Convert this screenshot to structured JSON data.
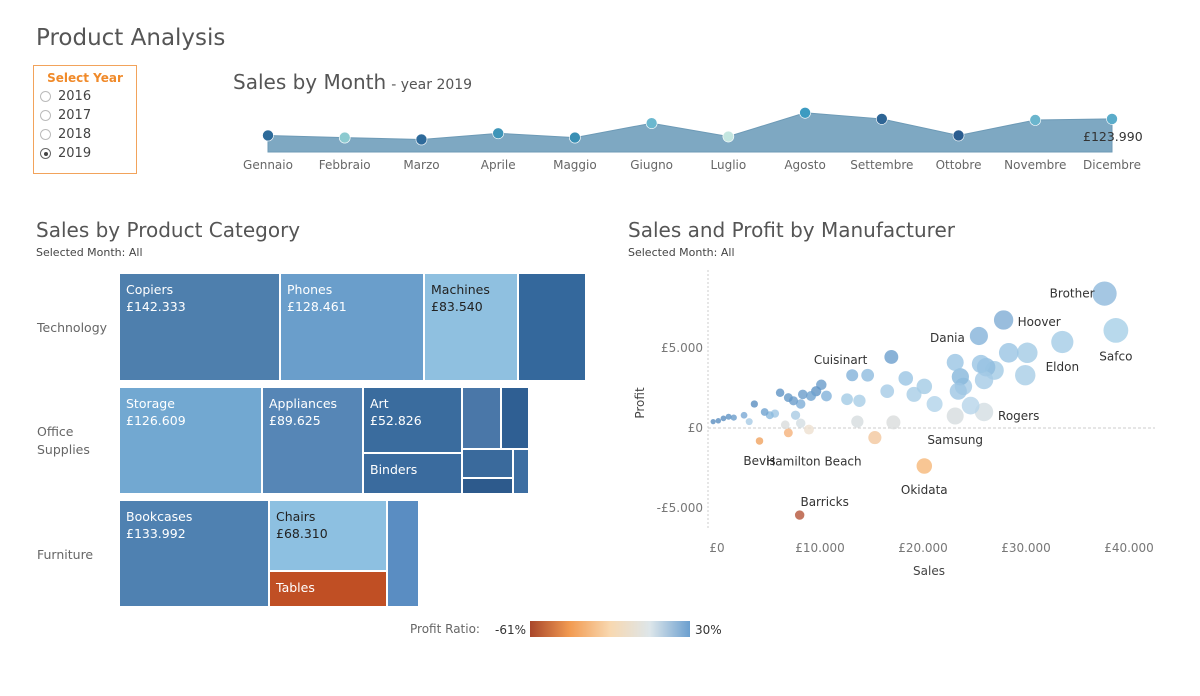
{
  "page_title": "Product Analysis",
  "year_filter": {
    "label": "Select Year",
    "options": [
      "2016",
      "2017",
      "2018",
      "2019"
    ],
    "selected": "2019"
  },
  "sales_by_month": {
    "title": "Sales by Month",
    "subtitle": "- year 2019",
    "last_value_label": "£123.990",
    "chart_data": {
      "type": "area",
      "categories": [
        "Gennaio",
        "Febbraio",
        "Marzo",
        "Aprile",
        "Maggio",
        "Giugno",
        "Luglio",
        "Agosto",
        "Settembre",
        "Ottobre",
        "Novembre",
        "Dicembre"
      ],
      "values": [
        62000,
        54000,
        47000,
        70000,
        54000,
        108000,
        58000,
        147000,
        124000,
        62000,
        120000,
        123990
      ],
      "point_colors": [
        "#2d6a99",
        "#8ccad0",
        "#2e6a9a",
        "#3e95b8",
        "#3a8fb4",
        "#6bb8cf",
        "#c4e6e0",
        "#3d9bc1",
        "#2e6595",
        "#2a5c8f",
        "#6bb5cd",
        "#5bacca"
      ],
      "fill_color": "#7ea8c2",
      "ylim": [
        0,
        150000
      ]
    }
  },
  "category_treemap": {
    "title": "Sales by Product Category",
    "selected_month_label": "Selected Month:",
    "selected_month_value": "All",
    "categories": [
      "Technology",
      "Office",
      "Supplies",
      "Furniture"
    ],
    "cells": [
      {
        "name": "Copiers",
        "value": "£142.333",
        "color": "#4e7fad"
      },
      {
        "name": "Phones",
        "value": "£128.461",
        "color": "#6a9ecb"
      },
      {
        "name": "Machines",
        "value": "£83.540",
        "color": "#8fc0e0"
      },
      {
        "name": "",
        "value": "",
        "color": "#34689c"
      },
      {
        "name": "Storage",
        "value": "£126.609",
        "color": "#72a8d1"
      },
      {
        "name": "Appliances",
        "value": "£89.625",
        "color": "#5686b6"
      },
      {
        "name": "Art",
        "value": "£52.826",
        "color": "#3a6c9e"
      },
      {
        "name": "Binders",
        "value": "",
        "color": "#3a6b9e"
      },
      {
        "name": "",
        "value": "",
        "color": "#4a77a8"
      },
      {
        "name": "",
        "value": "",
        "color": "#2f5f93"
      },
      {
        "name": "",
        "value": "",
        "color": "#3a6a9c"
      },
      {
        "name": "",
        "value": "",
        "color": "#2d5a8c"
      },
      {
        "name": "",
        "value": "",
        "color": "#3d6ea2"
      },
      {
        "name": "Bookcases",
        "value": "£133.992",
        "color": "#4f81b1"
      },
      {
        "name": "Chairs",
        "value": "£68.310",
        "color": "#8dc0e1"
      },
      {
        "name": "Tables",
        "value": "",
        "color": "#c04f24"
      },
      {
        "name": "",
        "value": "",
        "color": "#5a8dc2"
      }
    ]
  },
  "manufacturer_scatter": {
    "title": "Sales and Profit by Manufacturer",
    "selected_month_label": "Selected Month:",
    "selected_month_value": "All",
    "chart_data": {
      "type": "scatter",
      "xlabel": "Sales",
      "ylabel": "Profit",
      "xlim": [
        0,
        42000
      ],
      "ylim": [
        -6500,
        9800
      ],
      "xticks": [
        "£0",
        "£10.000",
        "£20.000",
        "£30.000",
        "£40.000"
      ],
      "xtick_values": [
        0,
        10000,
        20000,
        30000,
        40000
      ],
      "yticks": [
        "£5.000",
        "£0",
        "-£5.000"
      ],
      "ytick_values": [
        5000,
        0,
        -5000
      ],
      "points": [
        {
          "x": 500,
          "y": 400,
          "c": "#5b8fc0"
        },
        {
          "x": 1000,
          "y": 450,
          "c": "#5b8fc0"
        },
        {
          "x": 1500,
          "y": 600,
          "c": "#5b8fc0"
        },
        {
          "x": 2000,
          "y": 700,
          "c": "#5f93c4"
        },
        {
          "x": 2500,
          "y": 650,
          "c": "#6a9ccb"
        },
        {
          "x": 3500,
          "y": 800,
          "c": "#7aa9d4"
        },
        {
          "x": 4000,
          "y": 400,
          "c": "#a7cbe5"
        },
        {
          "x": 4500,
          "y": 1500,
          "c": "#5b8fc0"
        },
        {
          "x": 5500,
          "y": 1000,
          "c": "#6fa3cf"
        },
        {
          "x": 6000,
          "y": 800,
          "c": "#8ab9dd"
        },
        {
          "x": 6500,
          "y": 900,
          "c": "#9ec6e3"
        },
        {
          "x": 7000,
          "y": 2200,
          "c": "#5f93c4"
        },
        {
          "x": 7800,
          "y": 1900,
          "c": "#6498c7"
        },
        {
          "x": 8300,
          "y": 1700,
          "c": "#6a9ccb"
        },
        {
          "x": 8500,
          "y": 800,
          "c": "#a9cbe3"
        },
        {
          "x": 9000,
          "y": 1500,
          "c": "#7eaed7"
        },
        {
          "x": 9200,
          "y": 2100,
          "c": "#6a9ccb"
        },
        {
          "x": 10000,
          "y": 2000,
          "c": "#6fa3cf"
        },
        {
          "x": 10500,
          "y": 2300,
          "c": "#5f93c4"
        },
        {
          "x": 11000,
          "y": 2700,
          "c": "#6a9ccb"
        },
        {
          "x": 11500,
          "y": 2000,
          "c": "#82b2d9"
        },
        {
          "x": 13500,
          "y": 1800,
          "c": "#a3cae5"
        },
        {
          "x": 14000,
          "y": 3300,
          "c": "#82b2d9"
        },
        {
          "x": 14700,
          "y": 1700,
          "c": "#a7cde6"
        },
        {
          "x": 15500,
          "y": 3300,
          "c": "#8ebbdf"
        },
        {
          "x": 17400,
          "y": 2300,
          "c": "#a5cbe6"
        },
        {
          "x": 19200,
          "y": 3100,
          "c": "#9ac4e3"
        },
        {
          "x": 20000,
          "y": 2100,
          "c": "#a7cde6"
        },
        {
          "x": 21000,
          "y": 2600,
          "c": "#a3cae5"
        },
        {
          "x": 22000,
          "y": 1500,
          "c": "#b2d3ea"
        },
        {
          "x": 24000,
          "y": 4100,
          "c": "#9ac4e3"
        },
        {
          "x": 24500,
          "y": 3200,
          "c": "#86b6db"
        },
        {
          "x": 24300,
          "y": 2300,
          "c": "#9ec6e3"
        },
        {
          "x": 24800,
          "y": 2600,
          "c": "#a5cbe6"
        },
        {
          "x": 26500,
          "y": 4000,
          "c": "#9ac4e3"
        },
        {
          "x": 26800,
          "y": 3000,
          "c": "#a5cbe6"
        },
        {
          "x": 27000,
          "y": 3800,
          "c": "#8ebbdf"
        },
        {
          "x": 27800,
          "y": 3600,
          "c": "#a3cae5"
        },
        {
          "x": 29200,
          "y": 4700,
          "c": "#9ac4e3"
        },
        {
          "x": 31000,
          "y": 4700,
          "c": "#a3cae5"
        },
        {
          "x": 30800,
          "y": 3300,
          "c": "#a7cde6"
        },
        {
          "x": 25500,
          "y": 1400,
          "c": "#b6d5ea"
        },
        {
          "x": 7500,
          "y": 200,
          "c": "#d9dcdc"
        },
        {
          "x": 9000,
          "y": 300,
          "c": "#d3dde2"
        },
        {
          "x": 14500,
          "y": 400,
          "c": "#d6dcde"
        },
        {
          "x": 18000,
          "y": 350,
          "c": "#d9dcdc"
        },
        {
          "x": 7800,
          "y": -300,
          "c": "#f5b27a"
        },
        {
          "x": 16200,
          "y": -600,
          "c": "#f2c79d"
        },
        {
          "x": 38500,
          "y": 8400,
          "c": "#8fb9dc",
          "label": "Brother",
          "lx": -10,
          "ly": 0,
          "anchor": "end"
        },
        {
          "x": 39600,
          "y": 6100,
          "c": "#a6cfe7",
          "label": "Safco",
          "lx": 0,
          "ly": 26,
          "anchor": "middle"
        },
        {
          "x": 28700,
          "y": 6750,
          "c": "#7facd4",
          "label": "Hoover",
          "lx": 14,
          "ly": 2,
          "anchor": "start"
        },
        {
          "x": 26300,
          "y": 5750,
          "c": "#85b3d9",
          "label": "Dania",
          "lx": -14,
          "ly": 2,
          "anchor": "end"
        },
        {
          "x": 34400,
          "y": 5375,
          "c": "#a4cce6",
          "label": "Eldon",
          "lx": 0,
          "ly": 25,
          "anchor": "middle"
        },
        {
          "x": 17800,
          "y": 4440,
          "c": "#6c9fcd",
          "label": "Cuisinart",
          "lx": -24,
          "ly": 3,
          "anchor": "end"
        },
        {
          "x": 26800,
          "y": 1000,
          "c": "#d3dde2",
          "label": "Rogers",
          "lx": 14,
          "ly": 4,
          "anchor": "start"
        },
        {
          "x": 24000,
          "y": 750,
          "c": "#d6dcde",
          "label": "Samsung",
          "lx": 0,
          "ly": 24,
          "anchor": "middle"
        },
        {
          "x": 5000,
          "y": -810,
          "c": "#f0a25f",
          "label": "Bevis",
          "lx": 0,
          "ly": 20,
          "anchor": "middle"
        },
        {
          "x": 9800,
          "y": -100,
          "c": "#ede0cf",
          "label": "Hamilton Beach",
          "lx": 5,
          "ly": 32,
          "anchor": "middle"
        },
        {
          "x": 21000,
          "y": -2375,
          "c": "#f6b879",
          "label": "Okidata",
          "lx": 0,
          "ly": 24,
          "anchor": "middle"
        },
        {
          "x": 8900,
          "y": -5440,
          "c": "#b5553a",
          "label": "Barricks",
          "lx": 25,
          "ly": -13,
          "anchor": "middle"
        }
      ]
    }
  },
  "legend": {
    "label": "Profit Ratio:",
    "min": "-61%",
    "max": "30%",
    "colors": [
      "#a9472b",
      "#f29b52",
      "#f8d8b0",
      "#dde6ea",
      "#6b9fcf"
    ]
  }
}
